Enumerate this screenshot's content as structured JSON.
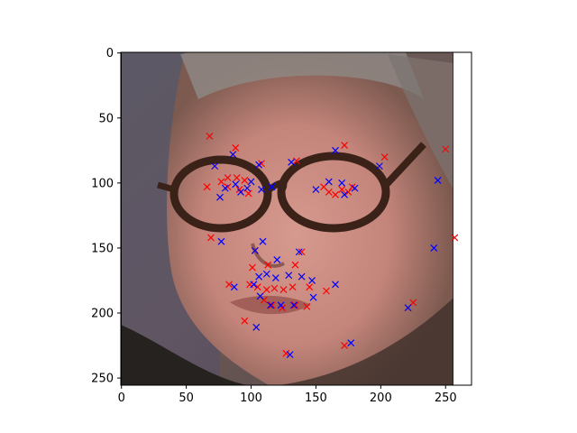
{
  "chart_data": {
    "type": "scatter",
    "background_image": "photo of an older man's face with dark-rimmed glasses",
    "xlim": [
      -0.5,
      270
    ],
    "ylim": [
      255.5,
      -0.5
    ],
    "xticks": [
      0,
      50,
      100,
      150,
      200,
      250
    ],
    "yticks": [
      0,
      50,
      100,
      150,
      200,
      250
    ],
    "grid": false,
    "colors": {
      "red": "#ff0000",
      "blue": "#0000ff"
    },
    "series": [
      {
        "color": "red",
        "marker": "x",
        "points": [
          [
            68,
            64
          ],
          [
            88,
            73
          ],
          [
            108,
            85
          ],
          [
            135,
            83
          ],
          [
            172,
            71
          ],
          [
            203,
            80
          ],
          [
            250,
            74
          ],
          [
            66,
            103
          ],
          [
            77,
            99
          ],
          [
            82,
            96
          ],
          [
            89,
            96
          ],
          [
            95,
            98
          ],
          [
            82,
            103
          ],
          [
            91,
            105
          ],
          [
            98,
            108
          ],
          [
            156,
            103
          ],
          [
            160,
            107
          ],
          [
            165,
            109
          ],
          [
            170,
            105
          ],
          [
            175,
            107
          ],
          [
            178,
            103
          ],
          [
            69,
            142
          ],
          [
            103,
            152
          ],
          [
            101,
            165
          ],
          [
            113,
            163
          ],
          [
            134,
            163
          ],
          [
            139,
            153
          ],
          [
            83,
            178
          ],
          [
            99,
            178
          ],
          [
            105,
            180
          ],
          [
            112,
            182
          ],
          [
            118,
            181
          ],
          [
            125,
            182
          ],
          [
            132,
            180
          ],
          [
            145,
            180
          ],
          [
            158,
            183
          ],
          [
            110,
            190
          ],
          [
            116,
            194
          ],
          [
            124,
            196
          ],
          [
            134,
            194
          ],
          [
            143,
            195
          ],
          [
            95,
            206
          ],
          [
            225,
            192
          ],
          [
            127,
            231
          ],
          [
            172,
            225
          ],
          [
            257,
            142
          ]
        ]
      },
      {
        "color": "blue",
        "marker": "x",
        "points": [
          [
            72,
            87
          ],
          [
            86,
            78
          ],
          [
            106,
            86
          ],
          [
            131,
            84
          ],
          [
            165,
            75
          ],
          [
            199,
            87
          ],
          [
            244,
            98
          ],
          [
            76,
            111
          ],
          [
            80,
            104
          ],
          [
            88,
            101
          ],
          [
            92,
            107
          ],
          [
            97,
            104
          ],
          [
            100,
            99
          ],
          [
            108,
            105
          ],
          [
            116,
            103
          ],
          [
            150,
            105
          ],
          [
            160,
            99
          ],
          [
            170,
            100
          ],
          [
            172,
            109
          ],
          [
            180,
            104
          ],
          [
            77,
            145
          ],
          [
            103,
            152
          ],
          [
            109,
            145
          ],
          [
            120,
            159
          ],
          [
            137,
            153
          ],
          [
            241,
            150
          ],
          [
            87,
            180
          ],
          [
            102,
            178
          ],
          [
            106,
            172
          ],
          [
            112,
            170
          ],
          [
            119,
            173
          ],
          [
            129,
            171
          ],
          [
            139,
            172
          ],
          [
            147,
            175
          ],
          [
            165,
            178
          ],
          [
            107,
            187
          ],
          [
            115,
            194
          ],
          [
            123,
            194
          ],
          [
            133,
            194
          ],
          [
            148,
            188
          ],
          [
            104,
            211
          ],
          [
            221,
            196
          ],
          [
            130,
            232
          ],
          [
            177,
            223
          ]
        ]
      }
    ]
  }
}
